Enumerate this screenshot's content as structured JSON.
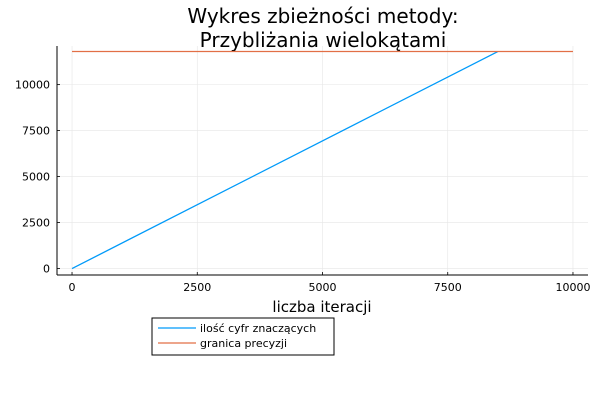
{
  "chart_data": {
    "type": "line",
    "title_lines": [
      "Wykres zbieżności metody:",
      "Przybliżania wielokątami"
    ],
    "xlabel": "liczba iteracji",
    "ylabel": "",
    "xlim": [
      -300,
      10300
    ],
    "ylim": [
      -350,
      12100
    ],
    "x_ticks": [
      0,
      2500,
      5000,
      7500,
      10000
    ],
    "y_ticks": [
      0,
      2500,
      5000,
      7500,
      10000
    ],
    "grid": true,
    "legend_position": "bottom-left, outside plot area",
    "series": [
      {
        "name": "ilość cyfr znaczących",
        "color": "#009af9",
        "x": [
          0,
          8500
        ],
        "y": [
          0,
          11800
        ]
      },
      {
        "name": "granica precyzji",
        "color": "#e26f46",
        "x": [
          0,
          10000
        ],
        "y": [
          11800,
          11800
        ]
      }
    ]
  }
}
